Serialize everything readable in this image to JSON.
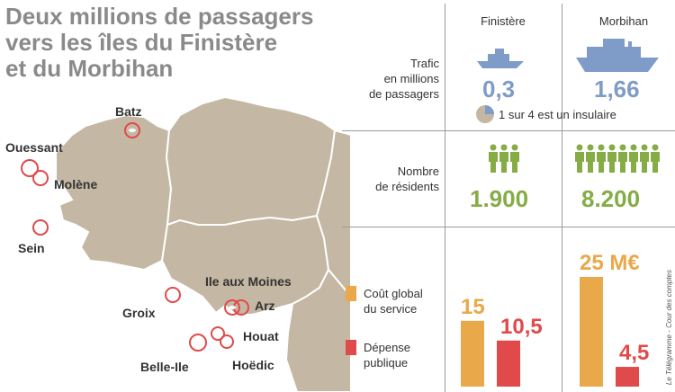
{
  "title_lines": [
    "Deux millions de passagers",
    "vers les îles du Finistère",
    "et du Morbihan"
  ],
  "islands": [
    "Batz",
    "Ouessant",
    "Molène",
    "Sein",
    "Groix",
    "Ile aux Moines",
    "Arz",
    "Houat",
    "Belle-Ile",
    "Hoëdic"
  ],
  "columns": [
    "Finistère",
    "Morbihan"
  ],
  "rows": {
    "traffic_label": [
      "Trafic",
      "en millions",
      "de passagers"
    ],
    "residents_label": [
      "Nombre",
      "de résidents"
    ]
  },
  "legend": {
    "cost": [
      "Coût global",
      "du service"
    ],
    "public": [
      "Dépense",
      "publique"
    ]
  },
  "insular_note": "1 sur 4 est un insulaire",
  "source": "Le Télégramme - Cour des comptes",
  "colors": {
    "blue": "#7f9cc8",
    "green": "#86ac46",
    "orange": "#e9a84a",
    "red": "#e04a4a",
    "land": "#c4b7a3"
  },
  "icons": [
    "boat-icon",
    "person-icon",
    "pie-icon"
  ],
  "chart_data": [
    {
      "type": "table",
      "name": "traffic",
      "columns": [
        "Finistère",
        "Morbihan"
      ],
      "values": [
        "0,3",
        "1,66"
      ],
      "insular_share": 0.25
    },
    {
      "type": "table",
      "name": "residents",
      "columns": [
        "Finistère",
        "Morbihan"
      ],
      "values": [
        "1.900",
        "8.200"
      ]
    },
    {
      "type": "bar",
      "categories": [
        "Finistère",
        "Morbihan"
      ],
      "series": [
        {
          "name": "Coût global du service",
          "values": [
            15,
            25
          ],
          "labels": [
            "15",
            "25 M€"
          ]
        },
        {
          "name": "Dépense publique",
          "values": [
            10.5,
            4.5
          ],
          "labels": [
            "10,5",
            "4,5"
          ]
        }
      ],
      "ylim": [
        0,
        25
      ]
    }
  ]
}
